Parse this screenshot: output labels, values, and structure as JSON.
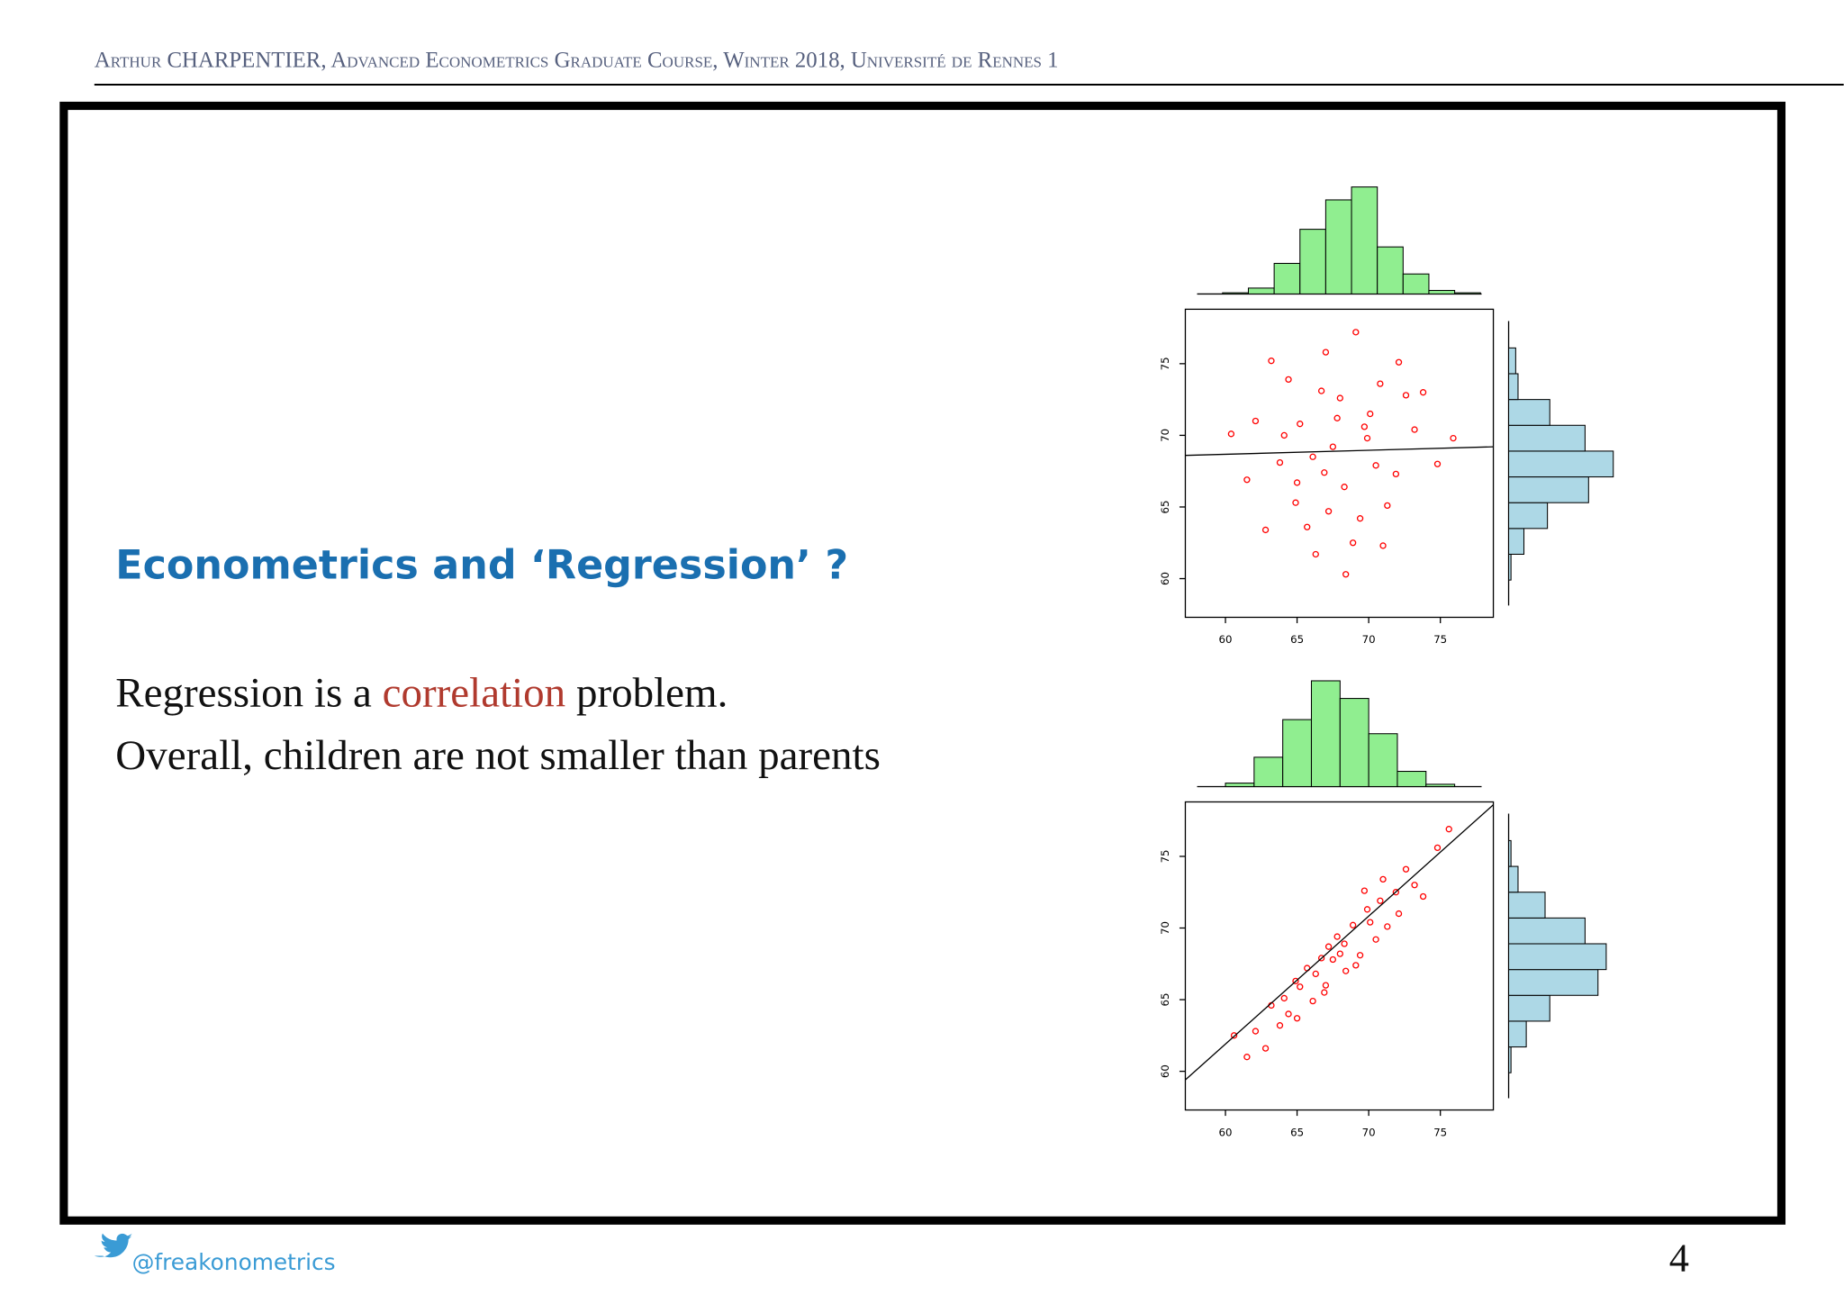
{
  "header": "Arthur CHARPENTIER, Advanced Econometrics Graduate Course, Winter 2018, Université de Rennes 1",
  "title": "Econometrics and ‘Regression’ ?",
  "body": {
    "line1": [
      "Regression is a",
      "correlation",
      "problem."
    ],
    "line2": "Overall, children are not smaller than parents"
  },
  "footer": "@freakonometrics",
  "page_number": "4",
  "charts": [
    {
      "type": "scatter_hist",
      "color": "#ff0000",
      "hist_top_color": "#90ee90",
      "hist_right_color": "#add8e6",
      "xlim": [
        57.2,
        78.7
      ],
      "ylim": [
        57.3,
        78.8
      ],
      "xticks": [
        60,
        65,
        70,
        75
      ],
      "yticks": [
        60,
        65,
        70,
        75
      ],
      "x": [
        67.5,
        65.2,
        70.1,
        68.3,
        63.8,
        71.9,
        66.7,
        69.4,
        62.1,
        73.2,
        64.9,
        67.0,
        70.8,
        68.9,
        61.5,
        72.6,
        66.1,
        69.9,
        64.4,
        71.3,
        67.8,
        65.7,
        74.8,
        63.2,
        69.1,
        68.4,
        60.4,
        66.3,
        72.1,
        70.5,
        65.0,
        68.0,
        67.2,
        75.9,
        62.8,
        69.7,
        64.1,
        71.0,
        66.9,
        73.8
      ],
      "y": [
        69.2,
        70.8,
        71.5,
        66.4,
        68.1,
        67.3,
        73.1,
        64.2,
        71.0,
        70.4,
        65.3,
        75.8,
        73.6,
        62.5,
        66.9,
        72.8,
        68.5,
        69.8,
        73.9,
        65.1,
        71.2,
        63.6,
        68.0,
        75.2,
        77.2,
        60.3,
        70.1,
        61.7,
        75.1,
        67.9,
        66.7,
        72.6,
        64.7,
        69.8,
        63.4,
        70.6,
        70.0,
        62.3,
        67.4,
        73.0
      ],
      "line": {
        "x": [
          57.2,
          78.7
        ],
        "y": [
          68.6,
          69.2
        ]
      },
      "countlim": [
        0,
        200
      ],
      "top_hist": {
        "bins": [
          59.8,
          61.6,
          63.4,
          65.2,
          67.0,
          68.8,
          70.6,
          72.4,
          74.2,
          76.0,
          77.8
        ],
        "counts": [
          2,
          10,
          52,
          110,
          160,
          182,
          80,
          34,
          6,
          2
        ]
      },
      "right_hist": {
        "bins": [
          59.9,
          61.7,
          63.5,
          65.3,
          67.1,
          68.9,
          70.7,
          72.5,
          74.3,
          76.1
        ],
        "counts": [
          4,
          26,
          66,
          136,
          178,
          130,
          70,
          16,
          12
        ]
      }
    },
    {
      "type": "scatter_hist",
      "color": "#ff0000",
      "hist_top_color": "#90ee90",
      "hist_right_color": "#add8e6",
      "xlim": [
        57.2,
        78.7
      ],
      "ylim": [
        57.3,
        78.8
      ],
      "xticks": [
        60,
        65,
        70,
        75
      ],
      "yticks": [
        60,
        65,
        70,
        75
      ],
      "x": [
        67.5,
        65.2,
        70.1,
        68.3,
        63.8,
        71.9,
        66.7,
        69.4,
        62.1,
        73.2,
        64.9,
        67.0,
        70.8,
        68.9,
        61.5,
        72.6,
        66.1,
        69.9,
        64.4,
        71.3,
        67.8,
        65.7,
        74.8,
        63.2,
        69.1,
        68.4,
        60.6,
        66.3,
        72.1,
        70.5,
        65.0,
        68.0,
        67.2,
        75.6,
        62.8,
        69.7,
        64.1,
        71.0,
        66.9,
        73.8
      ],
      "y": [
        67.8,
        65.9,
        70.4,
        68.9,
        63.2,
        72.5,
        67.9,
        68.1,
        62.8,
        73.0,
        66.3,
        66.0,
        71.9,
        70.2,
        61.0,
        74.1,
        64.9,
        71.3,
        64.0,
        70.1,
        69.4,
        67.2,
        75.6,
        64.6,
        67.4,
        67.0,
        62.5,
        66.8,
        71.0,
        69.2,
        63.7,
        68.2,
        68.7,
        76.9,
        61.6,
        72.6,
        65.1,
        73.4,
        65.5,
        72.2
      ],
      "line": {
        "x": [
          57.2,
          78.7
        ],
        "y": [
          59.4,
          78.6
        ]
      },
      "countlim": [
        0,
        200
      ],
      "top_hist": {
        "bins": [
          60,
          62,
          64,
          66,
          68,
          70,
          72,
          74,
          76
        ],
        "counts": [
          6,
          50,
          114,
          180,
          150,
          90,
          26,
          4
        ]
      },
      "right_hist": {
        "bins": [
          59.9,
          61.7,
          63.5,
          65.3,
          67.1,
          68.9,
          70.7,
          72.5,
          74.3,
          76.1
        ],
        "counts": [
          4,
          30,
          70,
          152,
          166,
          130,
          62,
          16,
          4
        ]
      }
    }
  ]
}
